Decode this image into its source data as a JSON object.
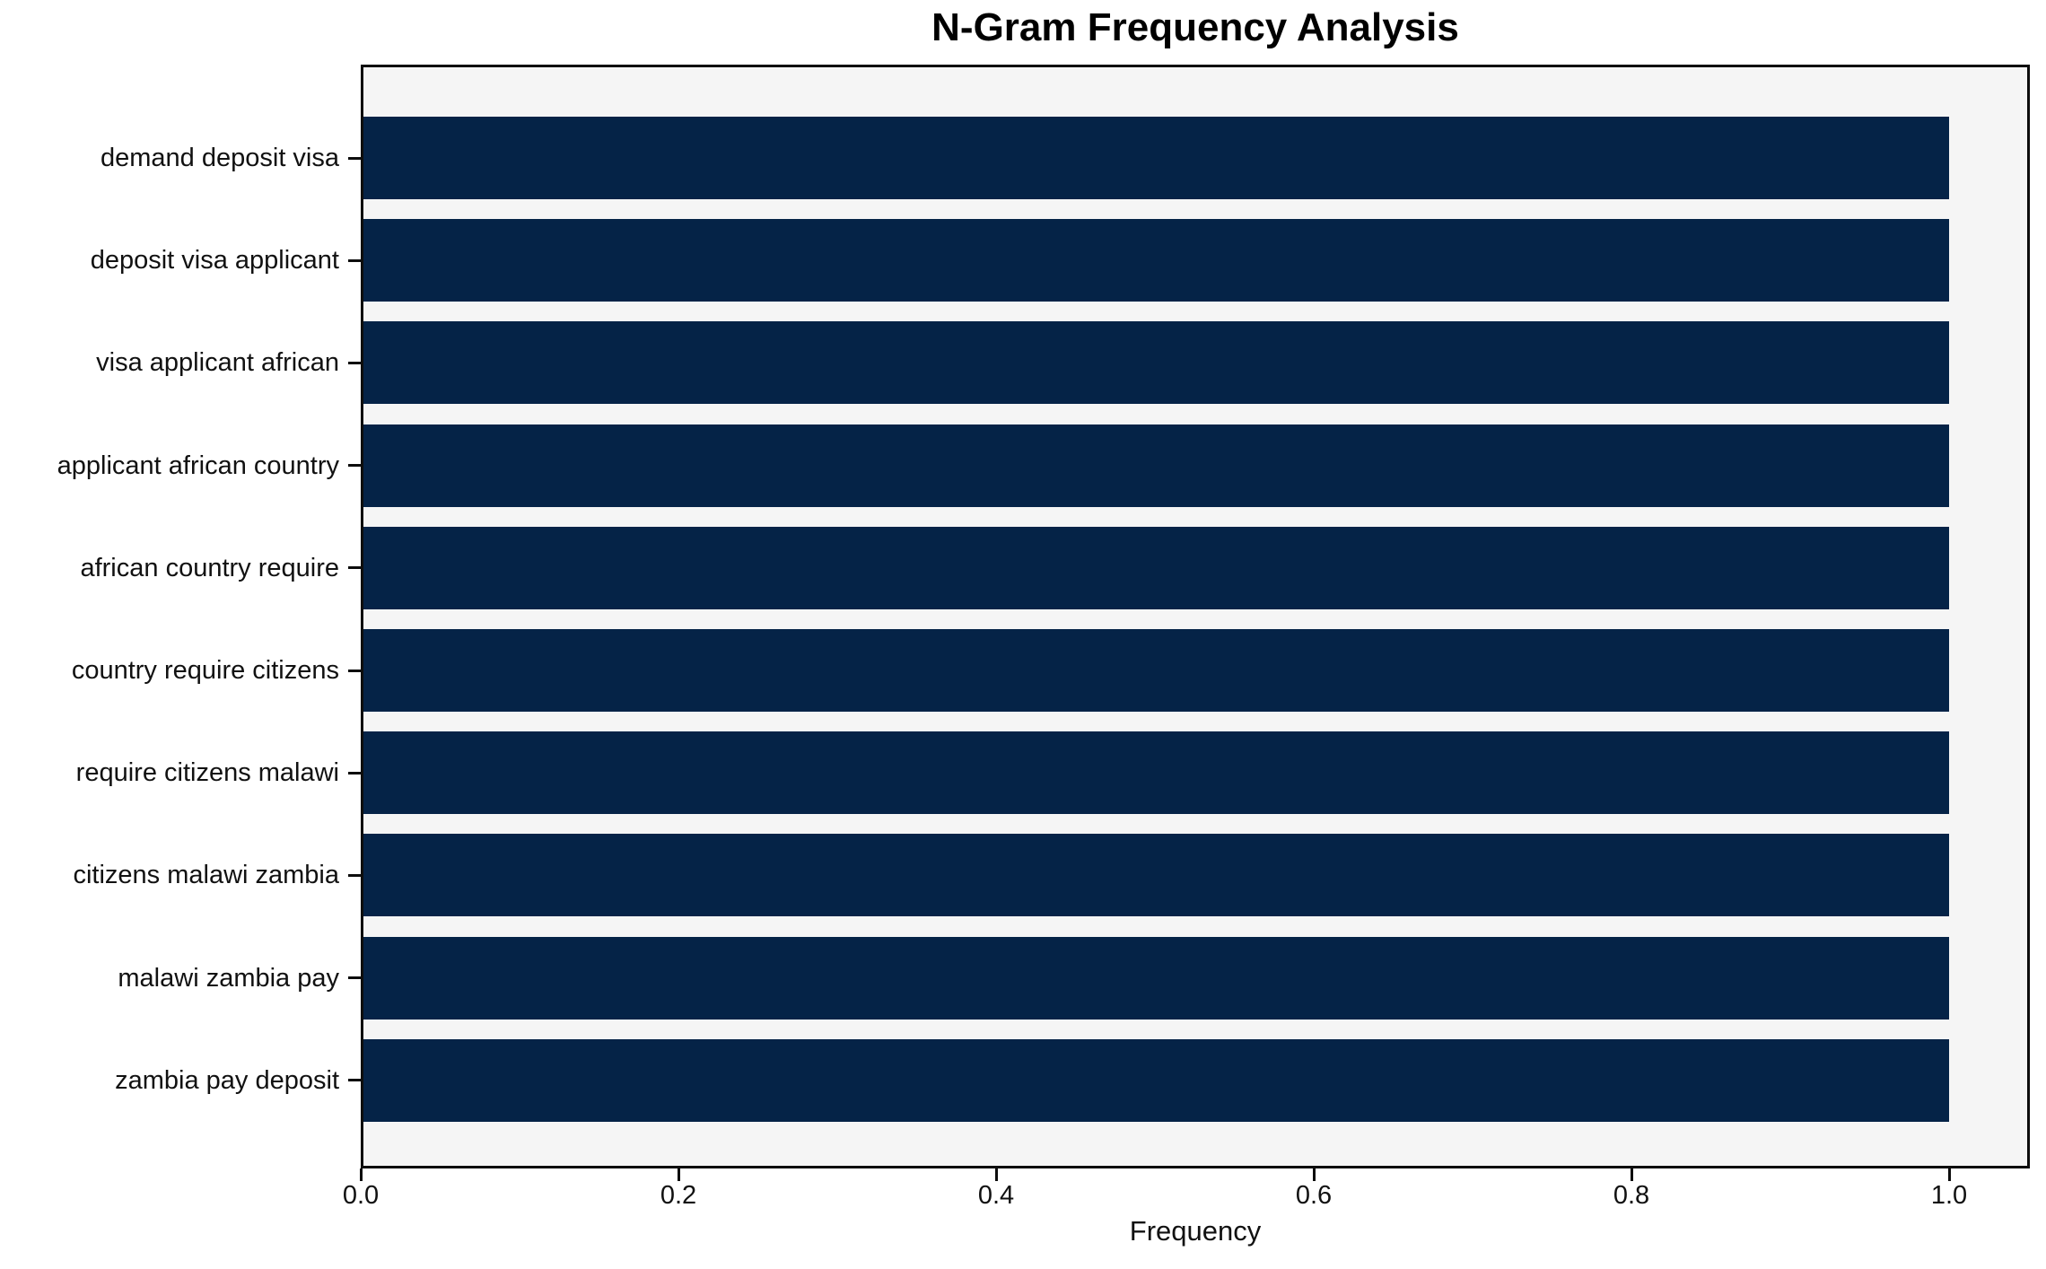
{
  "chart_data": {
    "type": "bar",
    "orientation": "horizontal",
    "title": "N-Gram Frequency Analysis",
    "xlabel": "Frequency",
    "categories": [
      "demand deposit visa",
      "deposit visa applicant",
      "visa applicant african",
      "applicant african country",
      "african country require",
      "country require citizens",
      "require citizens malawi",
      "citizens malawi zambia",
      "malawi zambia pay",
      "zambia pay deposit"
    ],
    "values": [
      1.0,
      1.0,
      1.0,
      1.0,
      1.0,
      1.0,
      1.0,
      1.0,
      1.0,
      1.0
    ],
    "x_ticks": [
      0.0,
      0.2,
      0.4,
      0.6,
      0.8,
      1.0
    ],
    "x_tick_labels": [
      "0.0",
      "0.2",
      "0.4",
      "0.6",
      "0.8",
      "1.0"
    ],
    "xlim": [
      0,
      1.05
    ],
    "grid": false,
    "legend": "none",
    "bar_color": "#052347",
    "plot_background": "#f5f5f5",
    "figure_background": "#ffffff"
  }
}
